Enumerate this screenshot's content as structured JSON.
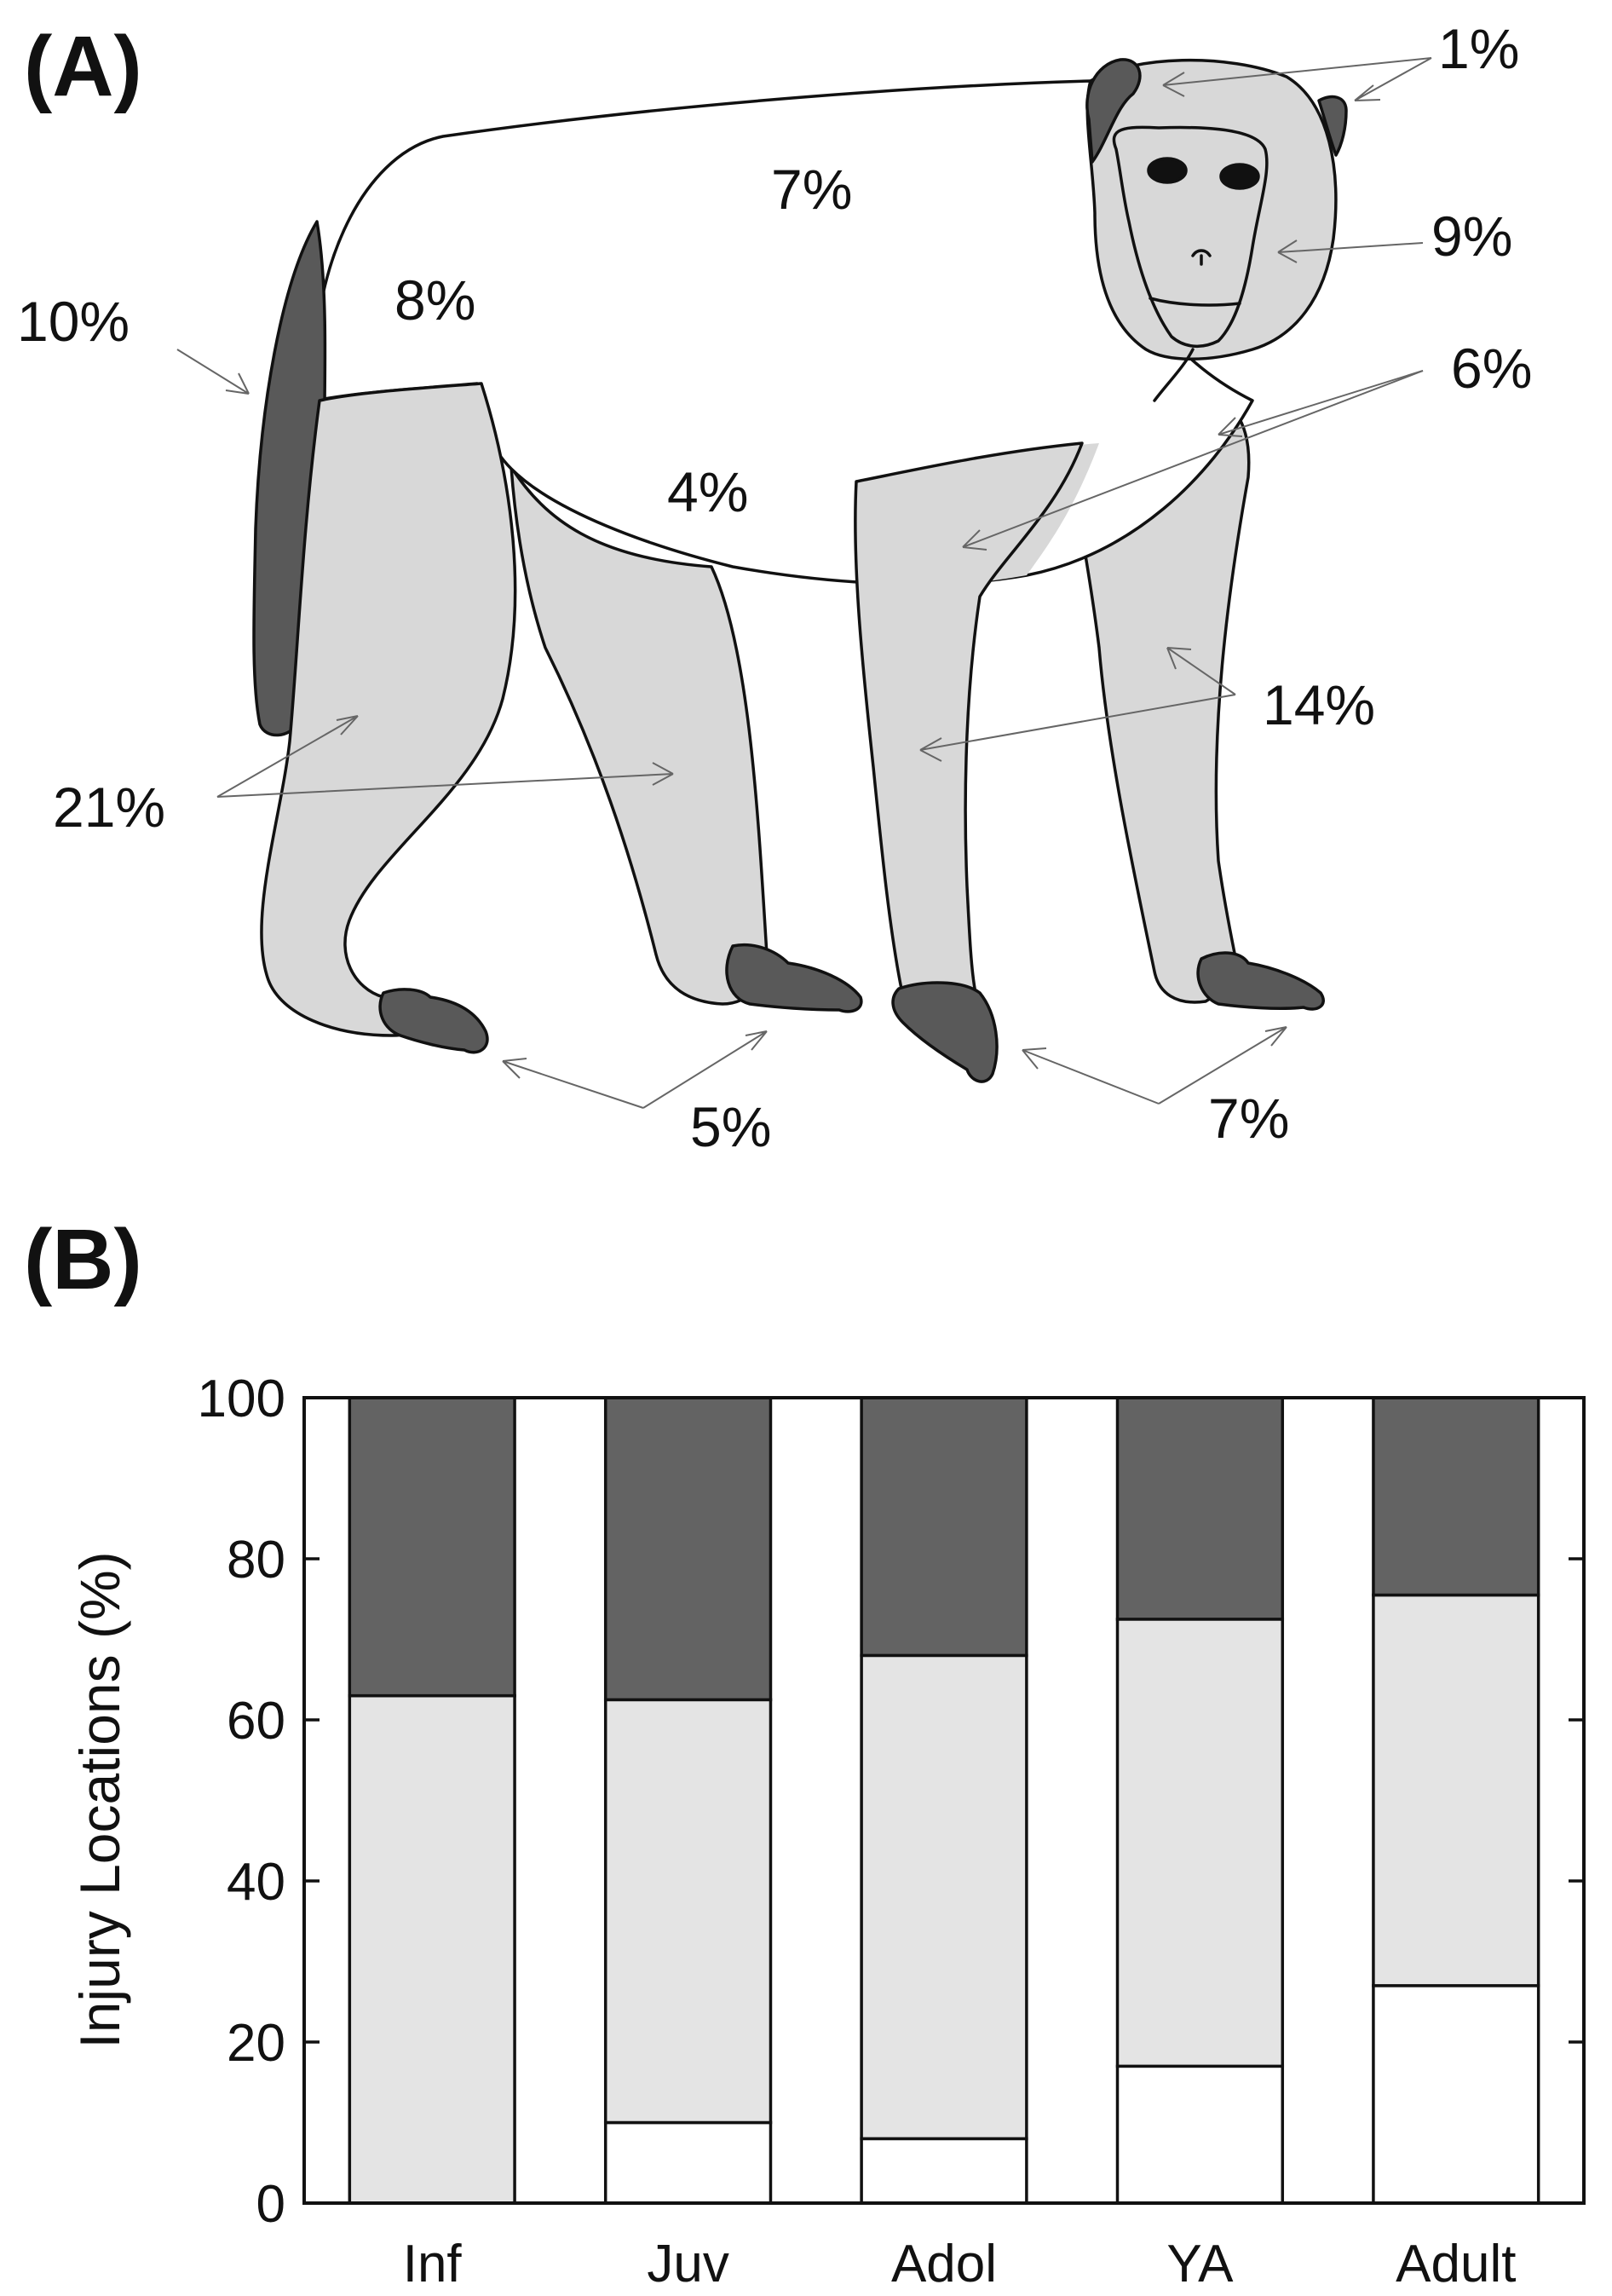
{
  "panels": {
    "a_label": "(A)",
    "b_label": "(B)"
  },
  "body_map": {
    "colors": {
      "body": "#ffffff",
      "limb": "#d8d8d8",
      "extremity": "#595959",
      "outline": "#111111",
      "text": "#111111"
    },
    "labels": [
      {
        "id": "ears",
        "text": "1%"
      },
      {
        "id": "back",
        "text": "7%"
      },
      {
        "id": "face",
        "text": "9%"
      },
      {
        "id": "flank",
        "text": "8%"
      },
      {
        "id": "tail",
        "text": "10%"
      },
      {
        "id": "shoulder-forearm",
        "text": "6%"
      },
      {
        "id": "belly",
        "text": "4%"
      },
      {
        "id": "forelegs",
        "text": "14%"
      },
      {
        "id": "hindlegs",
        "text": "21%"
      },
      {
        "id": "hind-feet",
        "text": "5%"
      },
      {
        "id": "fore-hands",
        "text": "7%"
      }
    ]
  },
  "chart_data": {
    "type": "bar",
    "stacked": true,
    "categories": [
      "Inf",
      "Juv",
      "Adol",
      "YA",
      "Adult"
    ],
    "series": [
      {
        "values": [
          0,
          10,
          8,
          17,
          27
        ],
        "color": "#ffffff"
      },
      {
        "values": [
          63,
          52.5,
          60,
          55.5,
          48.5
        ],
        "color": "#e4e4e4"
      },
      {
        "values": [
          37,
          37.5,
          32,
          27.5,
          24.5
        ],
        "color": "#636363"
      }
    ],
    "ylabel": "Injury Locations (%)",
    "ylim": [
      0,
      100
    ],
    "yticks": [
      0,
      20,
      40,
      60,
      80,
      100
    ],
    "grid": false
  }
}
